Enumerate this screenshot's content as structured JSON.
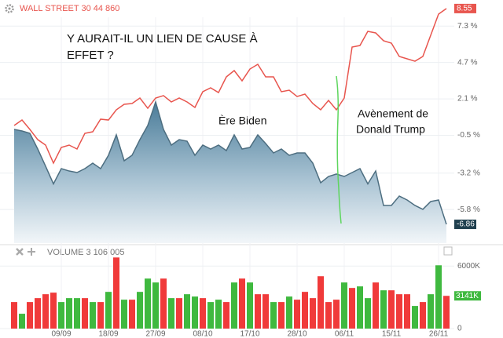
{
  "chart_data": [
    {
      "type": "line",
      "title": "WALL STREET 30 44 860",
      "annotations": [
        "Y AURAIT-IL UN LIEN DE CAUSE À",
        "EFFET ?",
        "Ère Biden",
        "Avènement de",
        "Donald Trump"
      ],
      "ylim": [
        -8.2,
        8.6
      ],
      "yticks": [
        {
          "value": 7.3,
          "label": "7.3 %"
        },
        {
          "value": 4.7,
          "label": "4.7 %"
        },
        {
          "value": 2.1,
          "label": "2.1 %"
        },
        {
          "value": -0.5,
          "label": "-0.5 %"
        },
        {
          "value": -3.2,
          "label": "-3.2 %"
        },
        {
          "value": -5.8,
          "label": "-5.8 %"
        }
      ],
      "grid": true,
      "series": [
        {
          "color": "#e8554e",
          "values": [
            0.2,
            0.59,
            -0.08,
            -0.81,
            -1.2,
            -2.49,
            -1.37,
            -1.2,
            -1.48,
            -0.36,
            -0.25,
            0.65,
            0.59,
            1.32,
            1.71,
            1.77,
            2.16,
            1.43,
            2.16,
            2.33,
            1.88,
            2.16,
            1.88,
            1.49,
            2.61,
            2.89,
            2.55,
            3.67,
            4.12,
            3.39,
            4.23,
            4.57,
            3.67,
            3.67,
            2.61,
            2.72,
            2.27,
            2.44,
            1.77,
            1.32,
            1.99,
            1.32,
            2.16,
            5.8,
            5.91,
            6.92,
            6.81,
            6.25,
            6.08,
            5.13,
            4.96,
            4.79,
            5.13,
            6.64,
            8.15,
            8.55
          ]
        },
        {
          "color": "#4d6e80",
          "area": true,
          "values": [
            -0.08,
            -0.19,
            -0.36,
            -1.48,
            -2.71,
            -3.97,
            -2.88,
            -3.05,
            -3.16,
            -2.88,
            -2.49,
            -2.88,
            -1.93,
            -0.47,
            -2.32,
            -1.93,
            -0.81,
            0.2,
            1.88,
            -0.08,
            -1.2,
            -0.81,
            -0.92,
            -1.93,
            -1.2,
            -1.48,
            -1.2,
            -1.59,
            -0.47,
            -1.48,
            -1.37,
            -0.47,
            -1.09,
            -1.76,
            -1.48,
            -1.93,
            -1.76,
            -1.76,
            -2.49,
            -3.89,
            -3.44,
            -3.27,
            -3.44,
            -3.16,
            -2.88,
            -3.97,
            -3.05,
            -5.51,
            -5.51,
            -4.84,
            -5.12,
            -5.51,
            -5.79,
            -5.23,
            -5.12,
            -6.86
          ]
        }
      ]
    },
    {
      "type": "bar",
      "title": "VOLUME 3 106 005",
      "categories": [
        null,
        null,
        null,
        null,
        null,
        null,
        "09/09",
        null,
        null,
        null,
        null,
        null,
        "18/09",
        null,
        null,
        null,
        null,
        null,
        "27/09",
        null,
        null,
        null,
        null,
        null,
        "08/10",
        null,
        null,
        null,
        null,
        null,
        "17/10",
        null,
        null,
        null,
        null,
        null,
        "28/10",
        null,
        null,
        null,
        null,
        null,
        "06/11",
        null,
        null,
        null,
        null,
        null,
        "15/11",
        null,
        null,
        null,
        null,
        null,
        "26/11",
        null
      ],
      "values": [
        2550,
        1425,
        2550,
        2925,
        3300,
        3450,
        2550,
        2925,
        2925,
        2925,
        2550,
        2550,
        3525,
        6825,
        2775,
        2775,
        3525,
        4800,
        4425,
        4800,
        2925,
        2925,
        3300,
        3075,
        2925,
        2550,
        2775,
        2550,
        4425,
        4800,
        4425,
        3300,
        3300,
        2550,
        2550,
        3075,
        2775,
        3525,
        2925,
        5025,
        2550,
        2775,
        4425,
        3900,
        4050,
        2925,
        4425,
        3675,
        3675,
        3300,
        3300,
        2175,
        2550,
        3300,
        6075,
        3141
      ],
      "colors": [
        "#f03a3a",
        "#3fb93f",
        "#f03a3a",
        "#f03a3a",
        "#f03a3a",
        "#f03a3a",
        "#3fb93f",
        "#3fb93f",
        "#3fb93f",
        "#f03a3a",
        "#3fb93f",
        "#f03a3a",
        "#3fb93f",
        "#f03a3a",
        "#3fb93f",
        "#f03a3a",
        "#3fb93f",
        "#3fb93f",
        "#3fb93f",
        "#f03a3a",
        "#3fb93f",
        "#f03a3a",
        "#3fb93f",
        "#3fb93f",
        "#f03a3a",
        "#3fb93f",
        "#3fb93f",
        "#f03a3a",
        "#3fb93f",
        "#f03a3a",
        "#3fb93f",
        "#f03a3a",
        "#f03a3a",
        "#3fb93f",
        "#f03a3a",
        "#3fb93f",
        "#f03a3a",
        "#f03a3a",
        "#f03a3a",
        "#f03a3a",
        "#f03a3a",
        "#f03a3a",
        "#3fb93f",
        "#f03a3a",
        "#3fb93f",
        "#3fb93f",
        "#f03a3a",
        "#3fb93f",
        "#f03a3a",
        "#f03a3a",
        "#f03a3a",
        "#3fb93f",
        "#f03a3a",
        "#3fb93f",
        "#3fb93f",
        "#f03a3a"
      ],
      "current": {
        "value": 3141,
        "label": "3141K"
      },
      "ylim": [
        0,
        7300
      ],
      "yticks": [
        {
          "value": 6000,
          "label": "6000K"
        },
        0
      ]
    }
  ]
}
